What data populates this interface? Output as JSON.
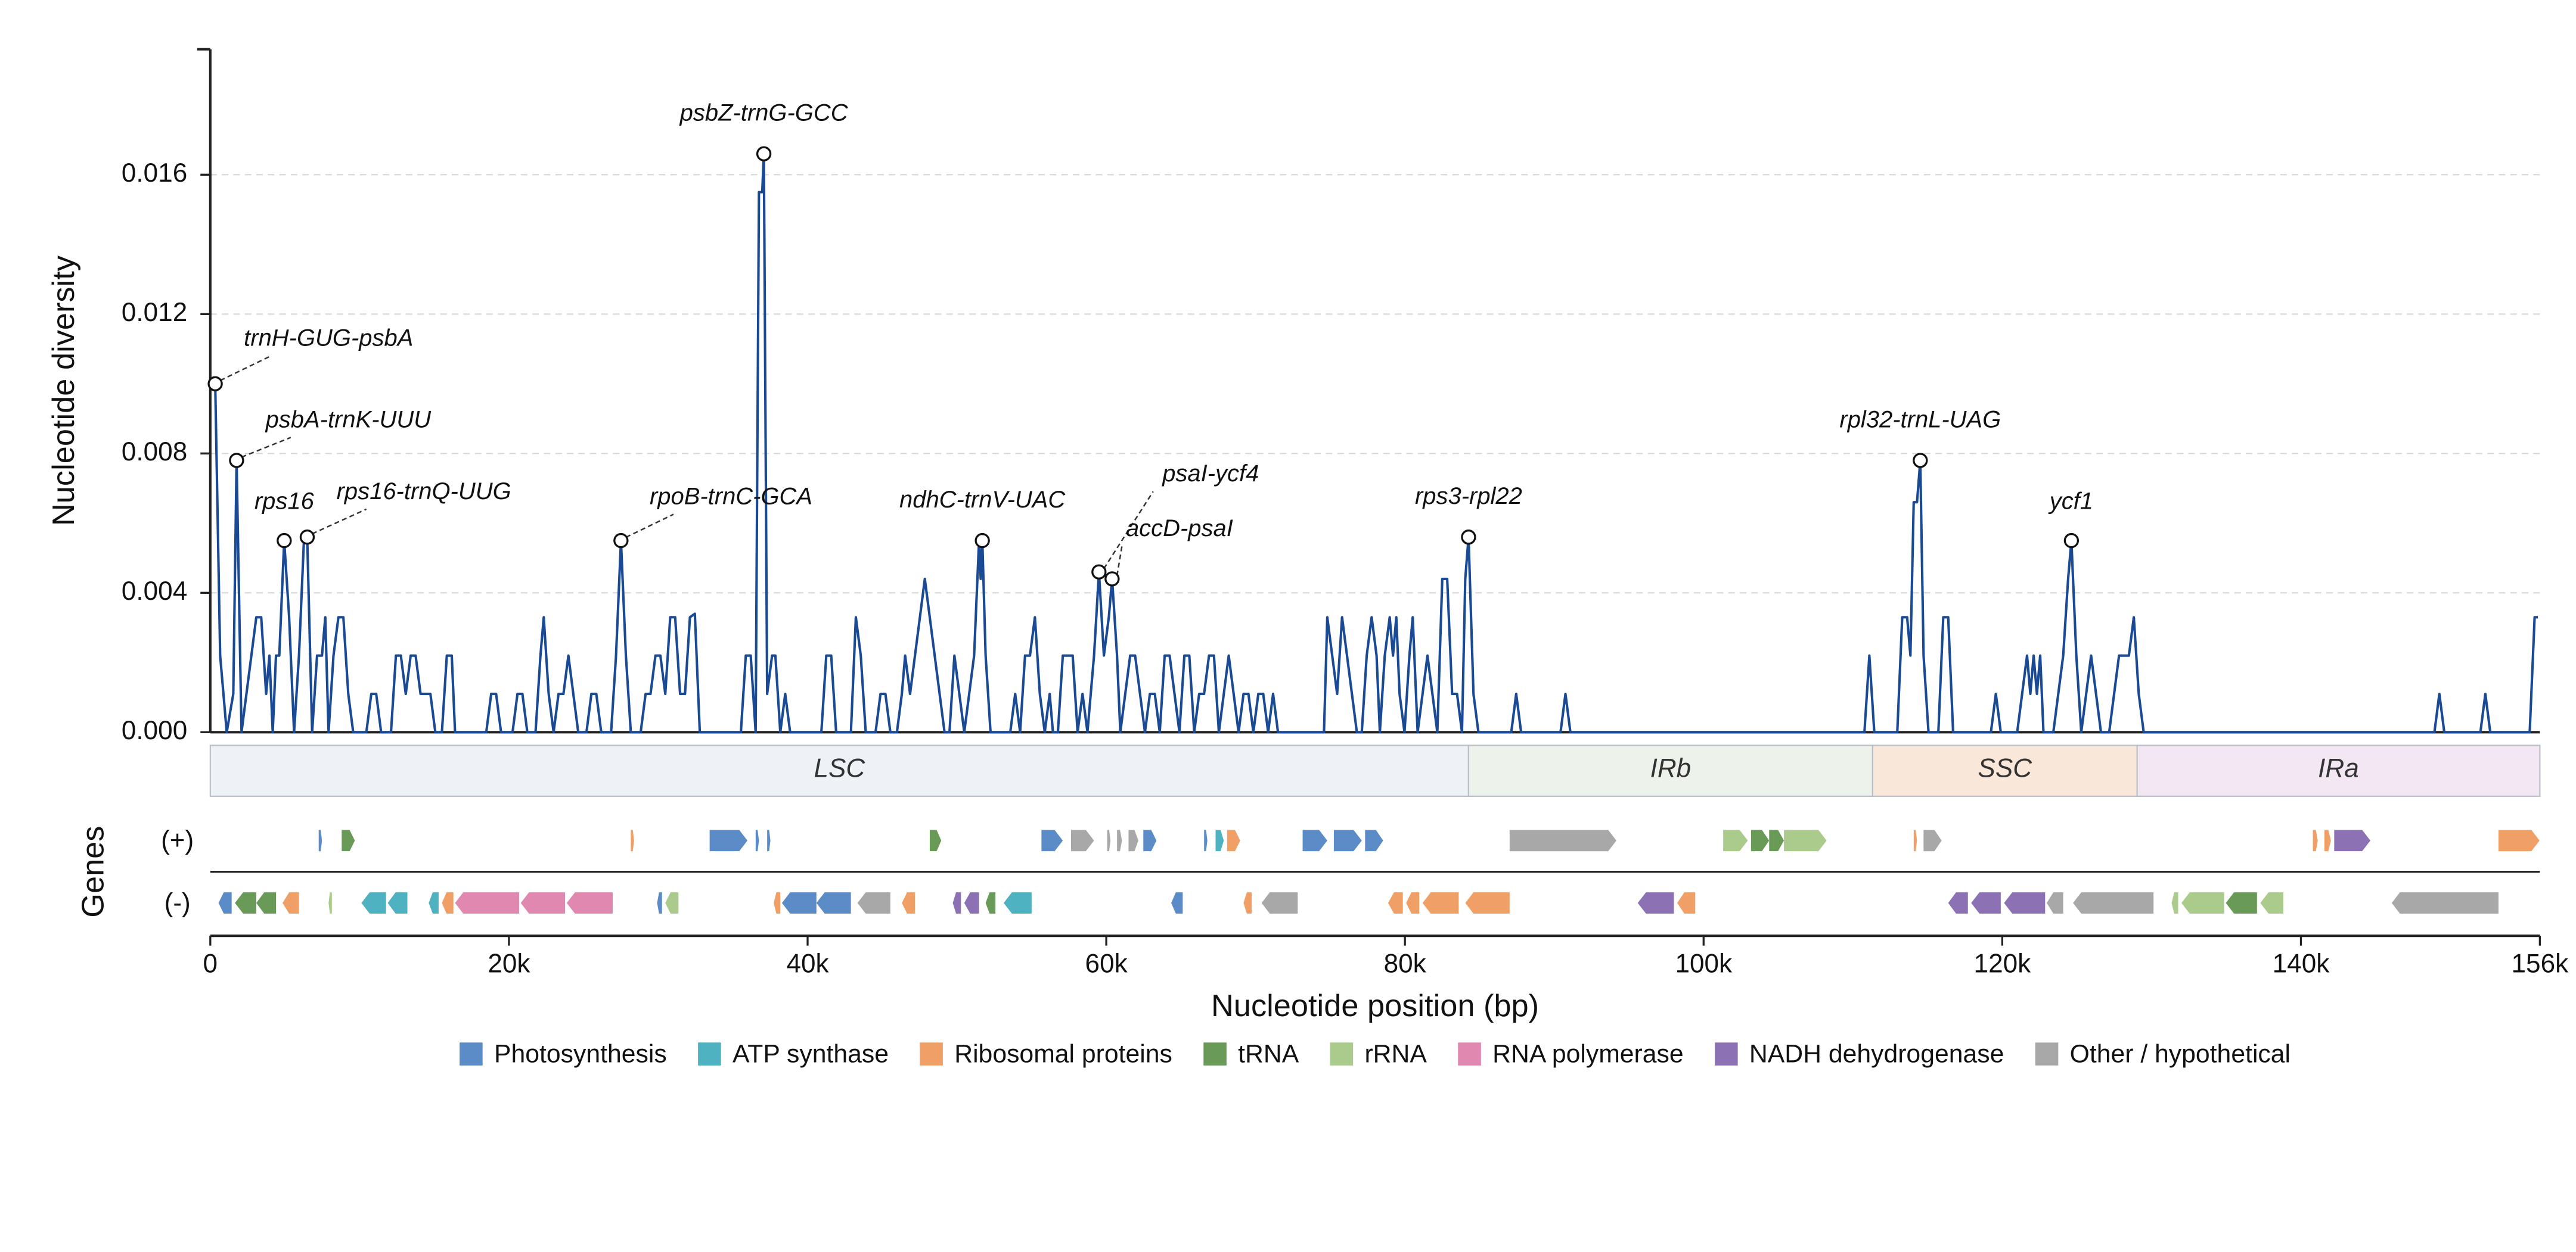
{
  "chart_data": {
    "type": "line",
    "xlabel": "Nucleotide position (bp)",
    "ylabel": "Nucleotide diversity",
    "genes_label": "Genes",
    "xlim": [
      0,
      156000
    ],
    "ylim": [
      0,
      0.0196
    ],
    "xticks": [
      0,
      {
        "value": 20000,
        "label": "20k"
      },
      {
        "value": 40000,
        "label": "40k"
      },
      {
        "value": 60000,
        "label": "60k"
      },
      {
        "value": 80000,
        "label": "80k"
      },
      {
        "value": 100000,
        "label": "100k"
      },
      {
        "value": 120000,
        "label": "120k"
      },
      {
        "value": 140000,
        "label": "140k"
      },
      {
        "value": 156000,
        "label": "156k"
      }
    ],
    "yticks": [
      {
        "value": 0,
        "label": "0.000"
      },
      0.004,
      0.008,
      0.012,
      0.016
    ],
    "grid": true,
    "color": "#1a4a94",
    "x": [
      0,
      330,
      660,
      1100,
      1540,
      1760,
      2090,
      2420,
      2750,
      3080,
      3410,
      3740,
      3960,
      4180,
      4400,
      4620,
      4950,
      5280,
      5610,
      5940,
      6270,
      6490,
      6820,
      7150,
      7480,
      7700,
      7920,
      8250,
      8580,
      8910,
      9240,
      9570,
      10450,
      10780,
      11110,
      11440,
      12100,
      12430,
      12760,
      13090,
      13420,
      13750,
      14080,
      14740,
      15070,
      15510,
      15840,
      16170,
      16390,
      18480,
      18810,
      19140,
      19470,
      20240,
      20570,
      20900,
      21230,
      21780,
      22110,
      22330,
      22660,
      22990,
      23320,
      23650,
      23980,
      24310,
      24640,
      25190,
      25520,
      25850,
      26180,
      26840,
      27170,
      27500,
      27830,
      28160,
      28820,
      29150,
      29480,
      29810,
      30140,
      30470,
      30800,
      31130,
      31460,
      31790,
      32120,
      32450,
      32780,
      35530,
      35860,
      36190,
      36520,
      36740,
      36960,
      37070,
      37290,
      37620,
      37840,
      38170,
      38500,
      38830,
      40920,
      41250,
      41580,
      41910,
      42900,
      43230,
      43560,
      43890,
      44550,
      44880,
      45210,
      45540,
      45980,
      46310,
      46530,
      46860,
      47190,
      47520,
      47850,
      48180,
      48510,
      48840,
      49170,
      49500,
      49830,
      50160,
      50490,
      50820,
      51150,
      51480,
      51590,
      51700,
      51920,
      52250,
      53570,
      53900,
      54230,
      54560,
      54890,
      55220,
      55550,
      55880,
      56210,
      56430,
      56760,
      57090,
      57420,
      57750,
      58080,
      58410,
      58740,
      59180,
      59510,
      59840,
      60170,
      60390,
      60720,
      60940,
      61270,
      61600,
      61930,
      62260,
      62590,
      62920,
      63250,
      63580,
      63910,
      64240,
      64570,
      64900,
      65230,
      65560,
      65890,
      66220,
      66550,
      66880,
      67210,
      67540,
      67870,
      68200,
      68530,
      68860,
      69190,
      69520,
      69850,
      70180,
      70510,
      70840,
      71170,
      71500,
      74580,
      74800,
      75130,
      75460,
      75790,
      76120,
      76450,
      76780,
      77110,
      77440,
      77770,
      78100,
      78320,
      78650,
      78980,
      79200,
      79420,
      79640,
      79970,
      80300,
      80520,
      80850,
      81180,
      81510,
      81840,
      82170,
      82500,
      82830,
      83160,
      83490,
      83820,
      84040,
      84260,
      84590,
      84920,
      87120,
      87450,
      87780,
      90420,
      90750,
      91080,
      110770,
      111100,
      111430,
      112970,
      113300,
      113630,
      113850,
      114070,
      114290,
      114510,
      114730,
      115060,
      115720,
      116050,
      116380,
      116710,
      119240,
      119570,
      119900,
      121000,
      121330,
      121660,
      121880,
      122100,
      122320,
      122540,
      122760,
      123420,
      123750,
      124080,
      124410,
      124630,
      124960,
      125290,
      125620,
      125950,
      126280,
      126610,
      127160,
      127490,
      127820,
      128150,
      128480,
      128810,
      129140,
      129470,
      148940,
      149270,
      149600,
      152020,
      152350,
      152680,
      155320,
      155650,
      155870
    ],
    "values": [
      0.01,
      0.01,
      0.0022,
      0,
      0.0011,
      0.0078,
      0,
      0.0011,
      0.0022,
      0.0033,
      0.0033,
      0.0011,
      0.0022,
      0,
      0.0022,
      0.0022,
      0.0055,
      0.0033,
      0,
      0.0022,
      0.0055,
      0.0056,
      0,
      0.0022,
      0.0022,
      0.0033,
      0,
      0.0022,
      0.0033,
      0.0033,
      0.0011,
      0,
      0,
      0.0011,
      0.0011,
      0,
      0,
      0.0022,
      0.0022,
      0.0011,
      0.0022,
      0.0022,
      0.0011,
      0.0011,
      0,
      0,
      0.0022,
      0.0022,
      0,
      0,
      0.0011,
      0.0011,
      0,
      0,
      0.0011,
      0.0011,
      0,
      0,
      0.0022,
      0.0033,
      0.0011,
      0,
      0.0011,
      0.0011,
      0.0022,
      0.0011,
      0,
      0,
      0.0011,
      0.0011,
      0,
      0,
      0.0022,
      0.0055,
      0.0022,
      0,
      0,
      0.0011,
      0.0011,
      0.0022,
      0.0022,
      0.0011,
      0.0033,
      0.0033,
      0.0011,
      0.0011,
      0.0033,
      0.0034,
      0,
      0,
      0.0022,
      0.0022,
      0,
      0.0155,
      0.0155,
      0.0166,
      0.0011,
      0.0022,
      0.0022,
      0,
      0.0011,
      0,
      0,
      0.0022,
      0.0022,
      0,
      0,
      0.0033,
      0.0022,
      0,
      0,
      0.0011,
      0.0011,
      0,
      0,
      0.0011,
      0.0022,
      0.0011,
      0.0022,
      0.0033,
      0.0044,
      0.0033,
      0.0022,
      0.0011,
      0,
      0,
      0.0022,
      0.0011,
      0,
      0.0011,
      0.0022,
      0.0055,
      0.0044,
      0.0055,
      0.0022,
      0,
      0,
      0.0011,
      0,
      0.0022,
      0.0022,
      0.0033,
      0.0011,
      0,
      0.0011,
      0,
      0,
      0.0022,
      0.0022,
      0.0022,
      0,
      0.0011,
      0,
      0.0022,
      0.0046,
      0.0022,
      0.0033,
      0.0044,
      0.0022,
      0,
      0.0011,
      0.0022,
      0.0022,
      0.0011,
      0,
      0.0011,
      0.0011,
      0,
      0.0022,
      0.0022,
      0.0011,
      0,
      0.0022,
      0.0022,
      0,
      0.0011,
      0.0011,
      0.0022,
      0.0022,
      0,
      0.0011,
      0.0022,
      0.0011,
      0,
      0.0011,
      0.0011,
      0,
      0.0011,
      0.0011,
      0,
      0.0011,
      0,
      0,
      0.0033,
      0.0022,
      0.0011,
      0.0033,
      0.0022,
      0.0011,
      0,
      0,
      0.0022,
      0.0033,
      0.0022,
      0,
      0.0022,
      0.0033,
      0.0022,
      0.0033,
      0.0011,
      0,
      0.0022,
      0.0033,
      0,
      0.0011,
      0.0022,
      0.0011,
      0,
      0.0044,
      0.0044,
      0.0011,
      0.0011,
      0,
      0.0044,
      0.0056,
      0.0011,
      0,
      0,
      0.0011,
      0,
      0,
      0.0011,
      0,
      0,
      0.0022,
      0,
      0,
      0.0033,
      0.0033,
      0.0022,
      0.0066,
      0.0066,
      0.0078,
      0.0022,
      0,
      0,
      0.0033,
      0.0033,
      0,
      0,
      0.0011,
      0,
      0,
      0.0011,
      0.0022,
      0.0011,
      0.0022,
      0.0011,
      0.0022,
      0,
      0,
      0.0011,
      0.0022,
      0.0044,
      0.0055,
      0.0022,
      0,
      0.0011,
      0.0022,
      0.0011,
      0,
      0,
      0.0011,
      0.0022,
      0.0022,
      0.0022,
      0.0033,
      0.0011,
      0,
      0,
      0.0011,
      0,
      0,
      0.0011,
      0,
      0,
      0.0033,
      0.0033
    ],
    "annotations": [
      {
        "text": "trnH-GUG-psbA",
        "x": 330,
        "y": 0.01
      },
      {
        "text": "psbA-trnK-UUU",
        "x": 1760,
        "y": 0.0078
      },
      {
        "text": "rps16",
        "x": 4950,
        "y": 0.0055
      },
      {
        "text": "rps16-trnQ-UUG",
        "x": 6490,
        "y": 0.0056
      },
      {
        "text": "rpoB-trnC-GCA",
        "x": 27500,
        "y": 0.0055
      },
      {
        "text": "psbZ-trnG-GCC",
        "x": 37070,
        "y": 0.0166
      },
      {
        "text": "ndhC-trnV-UAC",
        "x": 51700,
        "y": 0.0055
      },
      {
        "text": "psaI-ycf4",
        "x": 59510,
        "y": 0.0046
      },
      {
        "text": "accD-psaI",
        "x": 60390,
        "y": 0.0044
      },
      {
        "text": "rps3-rpl22",
        "x": 84260,
        "y": 0.0056
      },
      {
        "text": "rpl32-trnL-UAG",
        "x": 114510,
        "y": 0.0078
      },
      {
        "text": "ycf1",
        "x": 124630,
        "y": 0.0055
      }
    ],
    "regions": [
      {
        "name": "LSC",
        "start": 0,
        "end": 84260,
        "color": "#eef2f6"
      },
      {
        "name": "IRb",
        "start": 84260,
        "end": 111320,
        "color": "#edf3eb"
      },
      {
        "name": "SSC",
        "start": 111320,
        "end": 129030,
        "color": "#f9e8da"
      },
      {
        "name": "IRa",
        "start": 129030,
        "end": 156000,
        "color": "#f2e7f2"
      }
    ],
    "legend": [
      {
        "name": "Photosynthesis",
        "color": "#5b8cc7"
      },
      {
        "name": "ATP synthase",
        "color": "#4fb2c0"
      },
      {
        "name": "Ribosomal proteins",
        "color": "#f0a066"
      },
      {
        "name": "tRNA",
        "color": "#6a9a58"
      },
      {
        "name": "rRNA",
        "color": "#aacb8b"
      },
      {
        "name": "RNA polymerase",
        "color": "#e088b0"
      },
      {
        "name": "NADH dehydrogenase",
        "color": "#8c72b5"
      },
      {
        "name": "Other / hypothetical",
        "color": "#a8a8a8"
      }
    ],
    "tracks": [
      {
        "label": "(+)",
        "genes": [
          {
            "start": 7260,
            "end": 7480,
            "category": "Photosynthesis"
          },
          {
            "start": 8800,
            "end": 9680,
            "category": "tRNA"
          },
          {
            "start": 28160,
            "end": 28380,
            "category": "Ribosomal proteins"
          },
          {
            "start": 33440,
            "end": 35970,
            "category": "Photosynthesis"
          },
          {
            "start": 36520,
            "end": 36740,
            "category": "Photosynthesis"
          },
          {
            "start": 37290,
            "end": 37510,
            "category": "Photosynthesis"
          },
          {
            "start": 48180,
            "end": 48950,
            "category": "tRNA"
          },
          {
            "start": 55660,
            "end": 57090,
            "category": "Photosynthesis"
          },
          {
            "start": 57640,
            "end": 59180,
            "category": "Other / hypothetical"
          },
          {
            "start": 60060,
            "end": 60280,
            "category": "Other / hypothetical"
          },
          {
            "start": 60720,
            "end": 61050,
            "category": "Other / hypothetical"
          },
          {
            "start": 61490,
            "end": 62150,
            "category": "Other / hypothetical"
          },
          {
            "start": 62480,
            "end": 63360,
            "category": "Photosynthesis"
          },
          {
            "start": 66550,
            "end": 66770,
            "category": "Photosynthesis"
          },
          {
            "start": 67320,
            "end": 67870,
            "category": "ATP synthase"
          },
          {
            "start": 68090,
            "end": 68970,
            "category": "Ribosomal proteins"
          },
          {
            "start": 73150,
            "end": 74800,
            "category": "Photosynthesis"
          },
          {
            "start": 75240,
            "end": 77110,
            "category": "Photosynthesis"
          },
          {
            "start": 77330,
            "end": 78540,
            "category": "Photosynthesis"
          },
          {
            "start": 87010,
            "end": 94160,
            "category": "Other / hypothetical"
          },
          {
            "start": 101310,
            "end": 102960,
            "category": "rRNA"
          },
          {
            "start": 103180,
            "end": 104390,
            "category": "tRNA"
          },
          {
            "start": 104390,
            "end": 105380,
            "category": "tRNA"
          },
          {
            "start": 105380,
            "end": 108240,
            "category": "rRNA"
          },
          {
            "start": 114070,
            "end": 114290,
            "category": "Ribosomal proteins"
          },
          {
            "start": 114730,
            "end": 115940,
            "category": "Other / hypothetical"
          },
          {
            "start": 140800,
            "end": 141130,
            "category": "Ribosomal proteins"
          },
          {
            "start": 141570,
            "end": 142010,
            "category": "Ribosomal proteins"
          },
          {
            "start": 142230,
            "end": 144650,
            "category": "NADH dehydrogenase"
          },
          {
            "start": 153230,
            "end": 155980,
            "category": "Ribosomal proteins"
          }
        ]
      },
      {
        "label": "(-)",
        "genes": [
          {
            "start": 550,
            "end": 1430,
            "category": "Photosynthesis"
          },
          {
            "start": 1650,
            "end": 3080,
            "category": "tRNA"
          },
          {
            "start": 3080,
            "end": 4400,
            "category": "tRNA"
          },
          {
            "start": 4840,
            "end": 5940,
            "category": "Ribosomal proteins"
          },
          {
            "start": 7920,
            "end": 8140,
            "category": "rRNA"
          },
          {
            "start": 10120,
            "end": 11770,
            "category": "ATP synthase"
          },
          {
            "start": 11880,
            "end": 13200,
            "category": "ATP synthase"
          },
          {
            "start": 14630,
            "end": 15290,
            "category": "ATP synthase"
          },
          {
            "start": 15510,
            "end": 16280,
            "category": "Ribosomal proteins"
          },
          {
            "start": 16390,
            "end": 20680,
            "category": "RNA polymerase"
          },
          {
            "start": 20790,
            "end": 23760,
            "category": "RNA polymerase"
          },
          {
            "start": 23870,
            "end": 26950,
            "category": "RNA polymerase"
          },
          {
            "start": 29920,
            "end": 30250,
            "category": "Photosynthesis"
          },
          {
            "start": 30470,
            "end": 31350,
            "category": "rRNA"
          },
          {
            "start": 37730,
            "end": 38170,
            "category": "Ribosomal proteins"
          },
          {
            "start": 38280,
            "end": 40590,
            "category": "Photosynthesis"
          },
          {
            "start": 40590,
            "end": 42900,
            "category": "Photosynthesis"
          },
          {
            "start": 43340,
            "end": 45540,
            "category": "Other / hypothetical"
          },
          {
            "start": 46310,
            "end": 47190,
            "category": "Ribosomal proteins"
          },
          {
            "start": 49720,
            "end": 50270,
            "category": "NADH dehydrogenase"
          },
          {
            "start": 50490,
            "end": 51480,
            "category": "NADH dehydrogenase"
          },
          {
            "start": 51920,
            "end": 52580,
            "category": "tRNA"
          },
          {
            "start": 53130,
            "end": 55000,
            "category": "ATP synthase"
          },
          {
            "start": 64350,
            "end": 65120,
            "category": "Photosynthesis"
          },
          {
            "start": 69190,
            "end": 69740,
            "category": "Ribosomal proteins"
          },
          {
            "start": 70400,
            "end": 72820,
            "category": "Other / hypothetical"
          },
          {
            "start": 78870,
            "end": 79860,
            "category": "Ribosomal proteins"
          },
          {
            "start": 80080,
            "end": 80960,
            "category": "Ribosomal proteins"
          },
          {
            "start": 81180,
            "end": 83600,
            "category": "Ribosomal proteins"
          },
          {
            "start": 84040,
            "end": 87010,
            "category": "Ribosomal proteins"
          },
          {
            "start": 95590,
            "end": 98010,
            "category": "NADH dehydrogenase"
          },
          {
            "start": 98230,
            "end": 99440,
            "category": "Ribosomal proteins"
          },
          {
            "start": 116380,
            "end": 117700,
            "category": "NADH dehydrogenase"
          },
          {
            "start": 117920,
            "end": 119900,
            "category": "NADH dehydrogenase"
          },
          {
            "start": 120120,
            "end": 122870,
            "category": "NADH dehydrogenase"
          },
          {
            "start": 122980,
            "end": 124080,
            "category": "Other / hypothetical"
          },
          {
            "start": 124740,
            "end": 130130,
            "category": "Other / hypothetical"
          },
          {
            "start": 131340,
            "end": 131780,
            "category": "rRNA"
          },
          {
            "start": 132000,
            "end": 134860,
            "category": "rRNA"
          },
          {
            "start": 134970,
            "end": 137060,
            "category": "tRNA"
          },
          {
            "start": 137280,
            "end": 138820,
            "category": "rRNA"
          },
          {
            "start": 146080,
            "end": 153230,
            "category": "Other / hypothetical"
          }
        ]
      }
    ]
  }
}
